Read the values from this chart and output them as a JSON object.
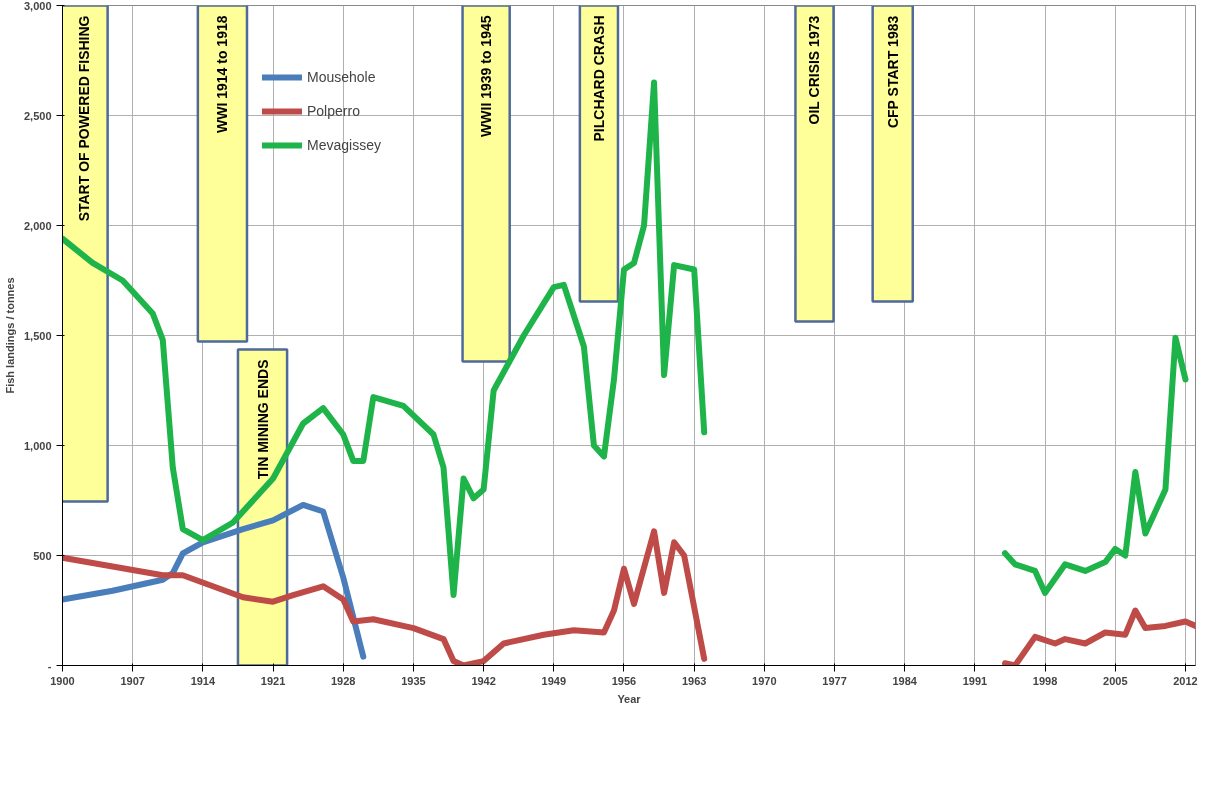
{
  "chart_data": {
    "type": "line",
    "xlabel": "Year",
    "ylabel": "Fish landings / tonnes",
    "xlim": [
      1900,
      2013
    ],
    "xticks": [
      1900,
      1907,
      1914,
      1921,
      1928,
      1935,
      1942,
      1949,
      1956,
      1963,
      1970,
      1977,
      1984,
      1991,
      1998,
      2005,
      2012
    ],
    "ylim": [
      0,
      3000
    ],
    "yticks": [
      {
        "value": 0,
        "label": "-"
      },
      {
        "value": 500,
        "label": "500"
      },
      {
        "value": 1000,
        "label": "1,000"
      },
      {
        "value": 1500,
        "label": "1,500"
      },
      {
        "value": 2000,
        "label": "2,000"
      },
      {
        "value": 2500,
        "label": "2,500"
      },
      {
        "value": 3000,
        "label": "3,000"
      }
    ],
    "grid": true,
    "legend": "top left",
    "marker": "none",
    "line_style": "solid",
    "series": [
      {
        "name": "Mousehole",
        "color": "#4a7ebb",
        "x": [
          1900,
          1905,
          1910,
          1911,
          1912,
          1914,
          1918,
          1921,
          1924,
          1926,
          1928,
          1930
        ],
        "values": [
          300,
          340,
          390,
          420,
          510,
          560,
          620,
          660,
          730,
          700,
          400,
          40
        ]
      },
      {
        "name": "Polperro",
        "color": "#be4b48",
        "x": [
          1900,
          1905,
          1910,
          1912,
          1915,
          1918,
          1921,
          1923,
          1926,
          1928,
          1929,
          1931,
          1935,
          1938,
          1939,
          1940,
          1942,
          1944,
          1948,
          1951,
          1954,
          1955,
          1956,
          1957,
          1959,
          1960,
          1961,
          1962,
          1964,
          1980,
          1994,
          1995,
          1997,
          1999,
          2000,
          2002,
          2004,
          2006,
          2007,
          2008,
          2010,
          2012,
          2013
        ],
        "values": [
          490,
          450,
          410,
          410,
          360,
          310,
          290,
          320,
          360,
          300,
          200,
          210,
          170,
          120,
          20,
          0,
          20,
          100,
          140,
          160,
          150,
          250,
          440,
          280,
          610,
          330,
          560,
          500,
          30,
          null,
          10,
          0,
          130,
          100,
          120,
          100,
          150,
          140,
          250,
          170,
          180,
          200,
          180
        ]
      },
      {
        "name": "Mevagissey",
        "color": "#1fb44a",
        "x": [
          1900,
          1903,
          1906,
          1909,
          1910,
          1911,
          1912,
          1914,
          1917,
          1921,
          1924,
          1926,
          1928,
          1929,
          1930,
          1931,
          1934,
          1937,
          1938,
          1939,
          1940,
          1941,
          1942,
          1943,
          1946,
          1949,
          1950,
          1952,
          1953,
          1954,
          1955,
          1956,
          1957,
          1958,
          1959,
          1960,
          1961,
          1963,
          1964,
          1980,
          1994,
          1995,
          1997,
          1998,
          2000,
          2002,
          2004,
          2005,
          2006,
          2007,
          2008,
          2010,
          2011,
          2012
        ],
        "values": [
          1940,
          1830,
          1750,
          1600,
          1480,
          900,
          620,
          570,
          650,
          850,
          1100,
          1170,
          1050,
          930,
          930,
          1220,
          1180,
          1050,
          900,
          320,
          850,
          760,
          800,
          1250,
          1500,
          1720,
          1730,
          1450,
          1000,
          950,
          1300,
          1800,
          1830,
          2000,
          2650,
          1320,
          1820,
          1800,
          1060,
          null,
          510,
          460,
          430,
          330,
          460,
          430,
          470,
          530,
          500,
          880,
          600,
          800,
          1490,
          1300
        ]
      }
    ],
    "bands": [
      {
        "axis": "x",
        "from": 1899.7,
        "to": 1904.5,
        "label": "START OF POWERED FISHING",
        "color": "#ffff99"
      },
      {
        "axis": "x",
        "from": 1913.5,
        "to": 1918.4,
        "label": "WWI 1914 to 1918",
        "color": "#ffff99"
      },
      {
        "axis": "x",
        "from": 1917.5,
        "to": 1922.4,
        "label": "TIN MINING ENDS",
        "color": "#ffff99"
      },
      {
        "axis": "x",
        "from": 1939.9,
        "to": 1944.6,
        "label": "WWII 1939 to 1945",
        "color": "#ffff99"
      },
      {
        "axis": "x",
        "from": 1951.6,
        "to": 1955.4,
        "label": "PILCHARD CRASH",
        "color": "#ffff99"
      },
      {
        "axis": "x",
        "from": 1973.1,
        "to": 1976.9,
        "label": "OIL CRISIS 1973",
        "color": "#ffff99"
      },
      {
        "axis": "x",
        "from": 1980.8,
        "to": 1984.8,
        "label": "CFP START 1983",
        "color": "#ffff99"
      }
    ]
  }
}
